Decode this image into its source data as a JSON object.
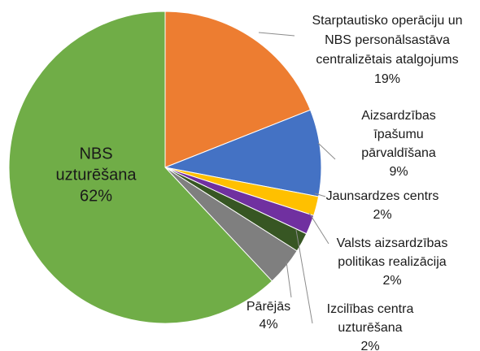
{
  "chart_data": {
    "type": "pie",
    "categories": [
      [
        "Starptautisko operāciju un",
        "NBS personālsastāva",
        "centralizētais atalgojums"
      ],
      [
        "Aizsardzības",
        "īpašumu",
        "pārvaldīšana"
      ],
      [
        "Jaunsardzes centrs"
      ],
      [
        "Valsts aizsardzības",
        "politikas realizācija"
      ],
      [
        "Izcilības centra",
        "uzturēšana"
      ],
      [
        "Pārējās"
      ],
      [
        "NBS",
        "uzturēšana"
      ]
    ],
    "values": [
      19,
      9,
      2,
      2,
      2,
      4,
      62
    ],
    "value_labels": [
      "19%",
      "9%",
      "2%",
      "2%",
      "2%",
      "4%",
      "62%"
    ],
    "colors": [
      "#ed7d31",
      "#4472c4",
      "#ffc000",
      "#7030a0",
      "#375623",
      "#7f7f7f",
      "#70ad47"
    ]
  }
}
